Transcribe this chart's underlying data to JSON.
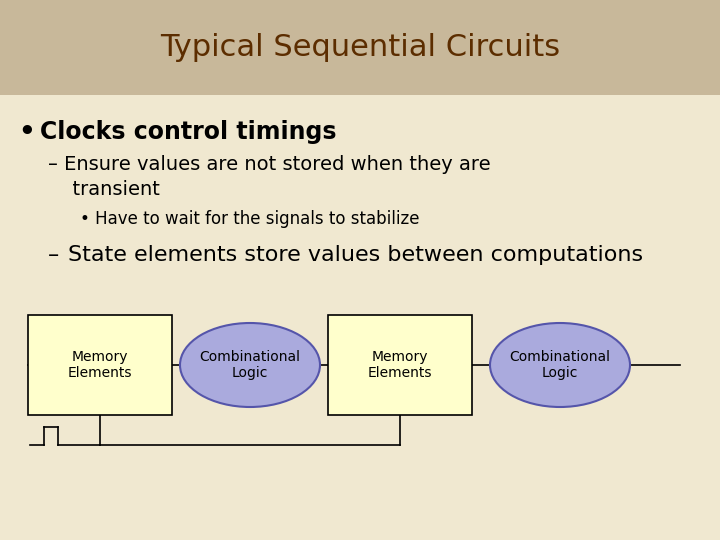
{
  "title": "Typical Sequential Circuits",
  "title_color": "#5C2D00",
  "title_bg_color": "#C8B89A",
  "body_bg_color": "#F0E8D0",
  "bullet1": "Clocks control timings",
  "sub1_line1": "– Ensure values are not stored when they are",
  "sub1_line2": "  transient",
  "sub2": "• Have to wait for the signals to stabilize",
  "sub3_dash": "–",
  "sub3_text": "State elements store values between computations",
  "text_color": "#000000",
  "box_fill": "#FFFFCC",
  "box_edge": "#000000",
  "ellipse_fill": "#AAAADD",
  "ellipse_edge": "#5555AA",
  "line_color": "#000000",
  "mem1_label": "Memory\nElements",
  "comb1_label": "Combinational\nLogic",
  "mem2_label": "Memory\nElements",
  "comb2_label": "Combinational\nLogic",
  "title_fontsize": 22,
  "bullet_fontsize": 17,
  "sub_fontsize": 14,
  "subsub_fontsize": 12,
  "sub3_fontsize": 16,
  "diagram_fontsize": 10
}
